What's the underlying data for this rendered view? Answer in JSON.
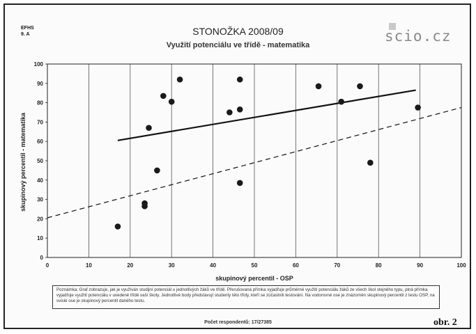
{
  "header": {
    "school_line1": "EFHS",
    "school_line2": "9. A",
    "title": "STONOŽKA 2008/09",
    "subtitle": "Využití potenciálu ve třídě - matematika",
    "logo_text": "scio.cz"
  },
  "note_text": "Poznámka: Graf zobrazuje, jak je využíván studijní potenciál u jednotlivých žáků ve třídě. Přerušovaná přímka vyjadřuje průměrné využití potenciálu žáků ze všech škol stejného typu, plná přímka vyjadřuje využití potenciálu v uvedené třídě vaší školy. Jednotlivé body představují studenty této třídy, kteří se zúčastnili testování. Na vodorovné ose je znázorněn skupinový percentil z testu OSP, na svislé ose je skupinový percentil daného testu.",
  "respondents": "Počet respondentů: 17/27385",
  "figure_label": "obr. 2",
  "colors": {
    "points": "#1a1a1a",
    "lines": "#111111",
    "grid": "#555555"
  },
  "chart_data": {
    "type": "scatter",
    "xlabel": "skupinový percentil - OSP",
    "ylabel": "skupinový percentil - matematika",
    "xlim": [
      0,
      100
    ],
    "ylim": [
      0,
      100
    ],
    "x_ticks": [
      0,
      10,
      20,
      30,
      40,
      50,
      60,
      70,
      80,
      90,
      100
    ],
    "y_ticks": [
      0,
      10,
      20,
      30,
      40,
      50,
      60,
      70,
      80,
      90,
      100
    ],
    "grid": "vertical",
    "points": [
      {
        "x": 17,
        "y": 16
      },
      {
        "x": 23.5,
        "y": 26.5
      },
      {
        "x": 23.5,
        "y": 28
      },
      {
        "x": 24.5,
        "y": 67
      },
      {
        "x": 26.5,
        "y": 45
      },
      {
        "x": 28,
        "y": 83.5
      },
      {
        "x": 30,
        "y": 80.5
      },
      {
        "x": 32,
        "y": 92
      },
      {
        "x": 44,
        "y": 75
      },
      {
        "x": 46.5,
        "y": 76.5
      },
      {
        "x": 46.5,
        "y": 92
      },
      {
        "x": 46.5,
        "y": 38.5
      },
      {
        "x": 65.5,
        "y": 88.5
      },
      {
        "x": 71,
        "y": 80.5
      },
      {
        "x": 75.5,
        "y": 88.5
      },
      {
        "x": 78,
        "y": 49
      },
      {
        "x": 89.5,
        "y": 77.5
      }
    ],
    "class_trend_line": {
      "style": "solid",
      "from": [
        17,
        60.5
      ],
      "to": [
        89,
        86.5
      ]
    },
    "average_trend_line": {
      "style": "dashed",
      "from": [
        0,
        20.5
      ],
      "to": [
        100,
        77.5
      ]
    }
  }
}
